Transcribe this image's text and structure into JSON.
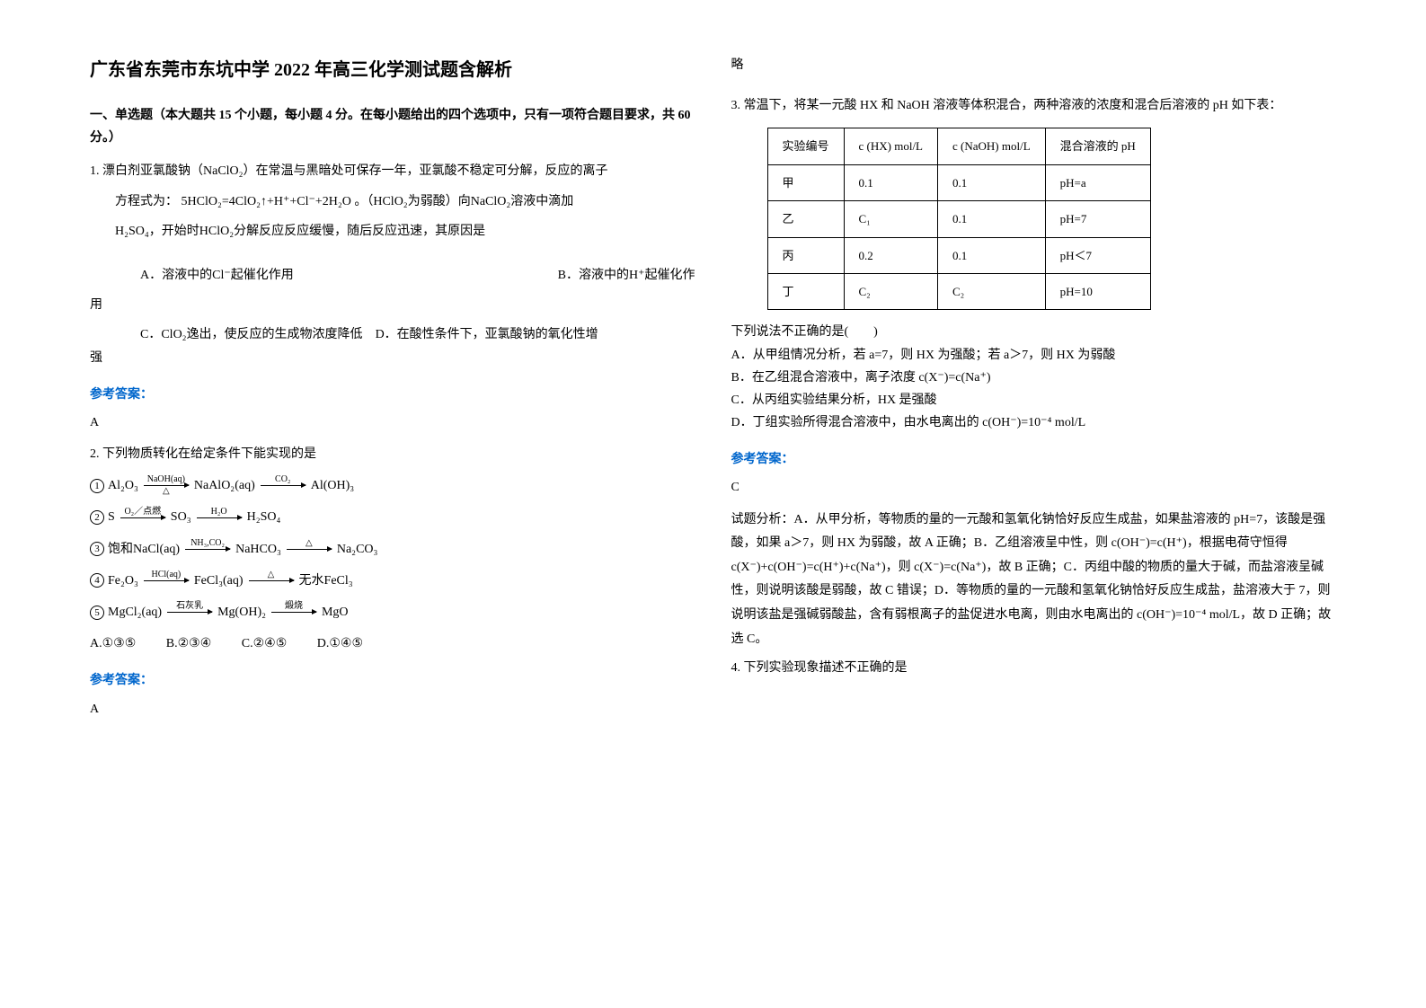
{
  "title": "广东省东莞市东坑中学 2022 年高三化学测试题含解析",
  "section1_header": "一、单选题（本大题共 15 个小题，每小题 4 分。在每小题给出的四个选项中，只有一项符合题目要求，共 60 分。）",
  "q1": {
    "line1_pre": "1. 漂白剂亚氯酸钠（",
    "f1": "NaClO₂",
    "line1_post": "）在常温与黑暗处可保存一年，亚氯酸不稳定可分解，反应的离子",
    "line2_pre": "方程式为：",
    "eq": "5HClO₂=4ClO₂↑+H⁺+Cl⁻+2H₂O",
    "line2_mid": "。（",
    "f2": "HClO₂",
    "line2_post": "为弱酸）向",
    "f3": "NaClO₂",
    "line2_end": "溶液中滴加",
    "line3_pre": "H₂SO₄",
    "line3_mid": "，开始时",
    "f4": "HClO₂",
    "line3_post": "分解反应反应缓慢，随后反应迅速，其原因是",
    "optA_pre": "A．溶液中的",
    "optA_f": "Cl⁻",
    "optA_post": "起催化作用",
    "optB_pre": "B．溶液中的",
    "optB_f": "H⁺",
    "optB_post": "起催化作",
    "optB_cont": "用",
    "optC_pre": "C．",
    "optC_f": "ClO₂",
    "optC_post": "逸出，使反应的生成物浓度降低",
    "optD": "D．在酸性条件下，亚氯酸钠的氧化性增",
    "optD_cont": "强"
  },
  "answer_label": "参考答案：",
  "q1_answer": "A",
  "q2": {
    "stem": "2. 下列物质转化在给定条件下能实现的是",
    "r1_start": "Al₂O₃",
    "r1_t1": "NaOH(aq)",
    "r1_b1": "△",
    "r1_mid": "NaAlO₂(aq)",
    "r1_t2": "CO₂",
    "r1_end": "Al(OH)₃",
    "r2_start": "S",
    "r2_t1": "O₂／点燃",
    "r2_mid": "SO₃",
    "r2_t2": "H₂O",
    "r2_end": "H₂SO₄",
    "r3_start": "饱和NaCl(aq)",
    "r3_t1": "NH₃,CO₂",
    "r3_mid": "NaHCO₃",
    "r3_t2": "△",
    "r3_end": "Na₂CO₃",
    "r4_start": "Fe₂O₃",
    "r4_t1": "HCl(aq)",
    "r4_mid": "FeCl₃(aq)",
    "r4_t2": "△",
    "r4_end": "无水FeCl₃",
    "r5_start": "MgCl₂(aq)",
    "r5_t1": "石灰乳",
    "r5_mid": "Mg(OH)₂",
    "r5_t2": "煅烧",
    "r5_end": "MgO",
    "optA": "A.①③⑤",
    "optB": "B.②③④",
    "optC": "C.②④⑤",
    "optD": "D.①④⑤",
    "answer": "A"
  },
  "col2_top": "略",
  "q3": {
    "stem": "3. 常温下，将某一元酸 HX 和 NaOH 溶液等体积混合，两种溶液的浓度和混合后溶液的 pH 如下表：",
    "table": {
      "headers": [
        "实验编号",
        "c (HX) mol/L",
        "c (NaOH) mol/L",
        "混合溶液的 pH"
      ],
      "rows": [
        [
          "甲",
          "0.1",
          "0.1",
          "pH=a"
        ],
        [
          "乙",
          "C₁",
          "0.1",
          "pH=7"
        ],
        [
          "丙",
          "0.2",
          "0.1",
          "pH＜7"
        ],
        [
          "丁",
          "C₂",
          "C₂",
          "pH=10"
        ]
      ]
    },
    "sub_stem": "下列说法不正确的是(　　)",
    "optA": "A．从甲组情况分析，若 a=7，则 HX 为强酸；若 a＞7，则 HX 为弱酸",
    "optB": "B．在乙组混合溶液中，离子浓度 c(X⁻)=c(Na⁺)",
    "optC": "C．从丙组实验结果分析，HX 是强酸",
    "optD": "D．丁组实验所得混合溶液中，由水电离出的 c(OH⁻)=10⁻⁴ mol/L",
    "answer": "C",
    "analysis": "试题分析：A．从甲分析，等物质的量的一元酸和氢氧化钠恰好反应生成盐，如果盐溶液的 pH=7，该酸是强酸，如果 a＞7，则 HX 为弱酸，故 A 正确；B．乙组溶液呈中性，则 c(OH⁻)=c(H⁺)，根据电荷守恒得 c(X⁻)+c(OH⁻)=c(H⁺)+c(Na⁺)，则 c(X⁻)=c(Na⁺)，故 B 正确；C．丙组中酸的物质的量大于碱，而盐溶液呈碱性，则说明该酸是弱酸，故 C 错误；D．等物质的量的一元酸和氢氧化钠恰好反应生成盐，盐溶液大于 7，则说明该盐是强碱弱酸盐，含有弱根离子的盐促进水电离，则由水电离出的 c(OH⁻)=10⁻⁴ mol/L，故 D 正确；故选 C。"
  },
  "q4_stem": "4. 下列实验现象描述不正确的是"
}
